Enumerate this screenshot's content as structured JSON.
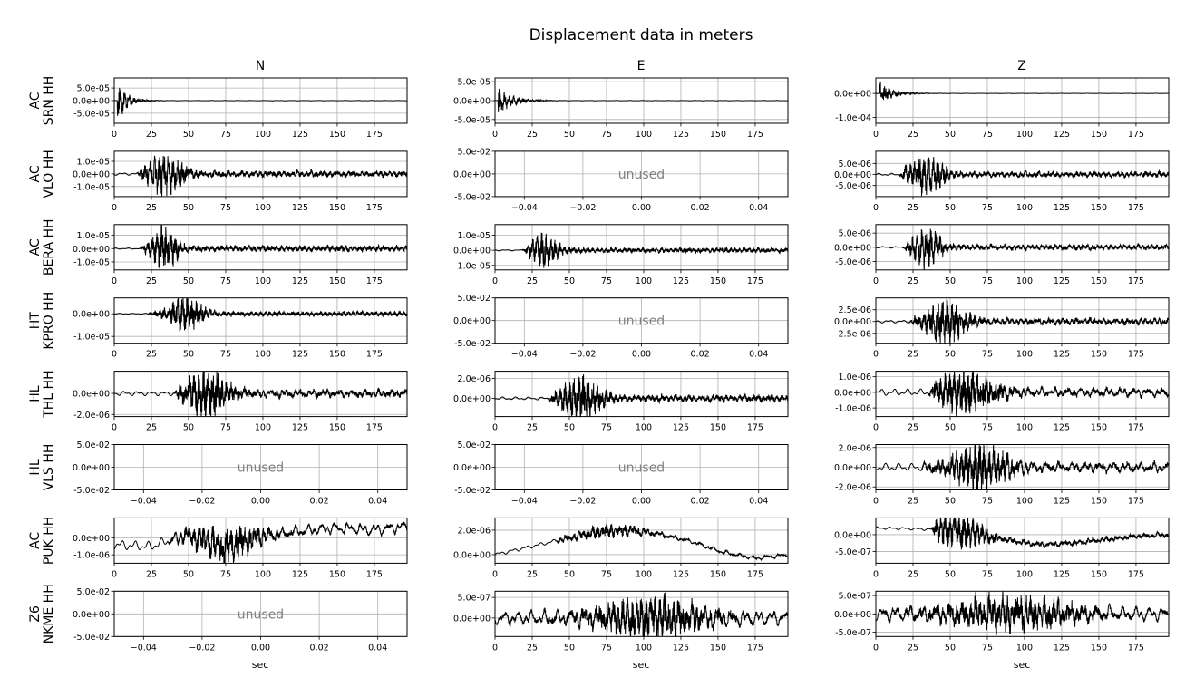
{
  "figure": {
    "title": "Displacement data in meters",
    "columns": [
      "N",
      "E",
      "Z"
    ],
    "xlabel": "sec",
    "unused_label": "unused"
  },
  "chart_data": [
    {
      "type": "line",
      "row": 0,
      "column": "N",
      "station": [
        "AC",
        "SRN HH"
      ],
      "used": true,
      "xlim": [
        0,
        197
      ],
      "xticks": [
        0,
        25,
        50,
        75,
        100,
        125,
        150,
        175
      ],
      "yticks": [
        {
          "value": 5e-05,
          "label": "5.0e-05"
        },
        {
          "value": 0,
          "label": "0.0e+00"
        },
        {
          "value": -5e-05,
          "label": "-5.0e-05"
        }
      ],
      "ylim": [
        -9e-05,
        9e-05
      ],
      "signal": {
        "onset": 2,
        "peak": 8e-05,
        "envelope": "impulsive decay",
        "decay": 6,
        "noise": 6e-07
      }
    },
    {
      "type": "line",
      "row": 0,
      "column": "E",
      "station": [
        "AC",
        "SRN HH"
      ],
      "used": true,
      "xlim": [
        0,
        197
      ],
      "xticks": [
        0,
        25,
        50,
        75,
        100,
        125,
        150,
        175
      ],
      "yticks": [
        {
          "value": 5e-05,
          "label": "5.0e-05"
        },
        {
          "value": 0,
          "label": "0.0e+00"
        },
        {
          "value": -5e-05,
          "label": "-5.0e-05"
        }
      ],
      "ylim": [
        -6e-05,
        6e-05
      ],
      "signal": {
        "onset": 2,
        "peak": 3.5e-05,
        "envelope": "impulsive decay",
        "decay": 9,
        "noise": 4e-07
      }
    },
    {
      "type": "line",
      "row": 0,
      "column": "Z",
      "station": [
        "AC",
        "SRN HH"
      ],
      "used": true,
      "xlim": [
        0,
        197
      ],
      "xticks": [
        0,
        25,
        50,
        75,
        100,
        125,
        150,
        175
      ],
      "yticks": [
        {
          "value": 0,
          "label": "0.0e+00"
        },
        {
          "value": -0.0001,
          "label": "-1.0e-04"
        }
      ],
      "ylim": [
        -0.000125,
        6.5e-05
      ],
      "signal": {
        "onset": 2,
        "peak": 5e-05,
        "envelope": "impulsive decay",
        "decay": 8,
        "noise": 5e-07
      }
    },
    {
      "type": "line",
      "row": 1,
      "column": "N",
      "station": [
        "AC",
        "VLO HH"
      ],
      "used": true,
      "xlim": [
        0,
        197
      ],
      "xticks": [
        0,
        25,
        50,
        75,
        100,
        125,
        150,
        175
      ],
      "yticks": [
        {
          "value": 1e-05,
          "label": "1.0e-05"
        },
        {
          "value": 0,
          "label": "0.0e+00"
        },
        {
          "value": -1e-05,
          "label": "-1.0e-05"
        }
      ],
      "ylim": [
        -1.8e-05,
        1.8e-05
      ],
      "signal": {
        "onset": 15,
        "peak": 1.3e-05,
        "envelope": "burst",
        "center": 34,
        "width": 13,
        "noise": 1e-06
      }
    },
    {
      "type": "line",
      "row": 1,
      "column": "E",
      "station": [
        "AC",
        "VLO HH"
      ],
      "used": false,
      "xlim": [
        -0.05,
        0.05
      ],
      "xticks": [
        {
          "value": -0.04,
          "label": "−0.04"
        },
        {
          "value": -0.02,
          "label": "−0.02"
        },
        {
          "value": 0,
          "label": "0.00"
        },
        {
          "value": 0.02,
          "label": "0.02"
        },
        {
          "value": 0.04,
          "label": "0.04"
        }
      ],
      "yticks": [
        {
          "value": 0.05,
          "label": "5.0e-02"
        },
        {
          "value": 0,
          "label": "0.0e+00"
        },
        {
          "value": -0.05,
          "label": "-5.0e-02"
        }
      ],
      "ylim": [
        -0.05,
        0.05
      ]
    },
    {
      "type": "line",
      "row": 1,
      "column": "Z",
      "station": [
        "AC",
        "VLO HH"
      ],
      "used": true,
      "xlim": [
        0,
        197
      ],
      "xticks": [
        0,
        25,
        50,
        75,
        100,
        125,
        150,
        175
      ],
      "yticks": [
        {
          "value": 5e-06,
          "label": "5.0e-06"
        },
        {
          "value": 0,
          "label": "0.0e+00"
        },
        {
          "value": -5e-06,
          "label": "-5.0e-06"
        }
      ],
      "ylim": [
        -1e-05,
        1.05e-05
      ],
      "signal": {
        "onset": 15,
        "peak": 7e-06,
        "envelope": "burst",
        "center": 34,
        "width": 13,
        "noise": 5e-07
      }
    },
    {
      "type": "line",
      "row": 2,
      "column": "N",
      "station": [
        "AC",
        "BERA HH"
      ],
      "used": true,
      "xlim": [
        0,
        197
      ],
      "xticks": [
        0,
        25,
        50,
        75,
        100,
        125,
        150,
        175
      ],
      "yticks": [
        {
          "value": 1e-05,
          "label": "1.0e-05"
        },
        {
          "value": 0,
          "label": "0.0e+00"
        },
        {
          "value": -1e-05,
          "label": "-1.0e-05"
        }
      ],
      "ylim": [
        -1.6e-05,
        1.8e-05
      ],
      "signal": {
        "onset": 17,
        "peak": 1.3e-05,
        "envelope": "burst",
        "center": 34,
        "width": 9,
        "noise": 5e-07
      }
    },
    {
      "type": "line",
      "row": 2,
      "column": "E",
      "station": [
        "AC",
        "BERA HH"
      ],
      "used": true,
      "xlim": [
        0,
        197
      ],
      "xticks": [
        0,
        25,
        50,
        75,
        100,
        125,
        150,
        175
      ],
      "yticks": [
        {
          "value": 1e-05,
          "label": "1.0e-05"
        },
        {
          "value": 0,
          "label": "0.0e+00"
        },
        {
          "value": -1e-05,
          "label": "-1.0e-05"
        }
      ],
      "ylim": [
        -1.3e-05,
        1.7e-05
      ],
      "signal": {
        "onset": 18,
        "peak": 9e-06,
        "envelope": "burst",
        "center": 33,
        "width": 10,
        "noise": 4e-07
      }
    },
    {
      "type": "line",
      "row": 2,
      "column": "Z",
      "station": [
        "AC",
        "BERA HH"
      ],
      "used": true,
      "xlim": [
        0,
        197
      ],
      "xticks": [
        0,
        25,
        50,
        75,
        100,
        125,
        150,
        175
      ],
      "yticks": [
        {
          "value": 5e-06,
          "label": "5.0e-06"
        },
        {
          "value": 0,
          "label": "0.0e+00"
        },
        {
          "value": -5e-06,
          "label": "-5.0e-06"
        }
      ],
      "ylim": [
        -8e-06,
        8e-06
      ],
      "signal": {
        "onset": 18,
        "peak": 5.5e-06,
        "envelope": "burst",
        "center": 34,
        "width": 10,
        "noise": 3e-07
      }
    },
    {
      "type": "line",
      "row": 3,
      "column": "N",
      "station": [
        "HT",
        "KPRO HH"
      ],
      "used": true,
      "xlim": [
        0,
        197
      ],
      "xticks": [
        0,
        25,
        50,
        75,
        100,
        125,
        150,
        175
      ],
      "yticks": [
        {
          "value": 0,
          "label": "0.0e+00"
        },
        {
          "value": -1e-05,
          "label": "-1.0e-05"
        }
      ],
      "ylim": [
        -1.3e-05,
        7e-06
      ],
      "signal": {
        "onset": 22,
        "peak": 6e-06,
        "envelope": "burst",
        "center": 48,
        "width": 12,
        "noise": 2e-07
      }
    },
    {
      "type": "line",
      "row": 3,
      "column": "E",
      "station": [
        "HT",
        "KPRO HH"
      ],
      "used": false,
      "xlim": [
        -0.05,
        0.05
      ],
      "xticks": [
        {
          "value": -0.04,
          "label": "−0.04"
        },
        {
          "value": -0.02,
          "label": "−0.02"
        },
        {
          "value": 0,
          "label": "0.00"
        },
        {
          "value": 0.02,
          "label": "0.02"
        },
        {
          "value": 0.04,
          "label": "0.04"
        }
      ],
      "yticks": [
        {
          "value": 0.05,
          "label": "5.0e-02"
        },
        {
          "value": 0,
          "label": "0.0e+00"
        },
        {
          "value": -0.05,
          "label": "-5.0e-02"
        }
      ],
      "ylim": [
        -0.05,
        0.05
      ]
    },
    {
      "type": "line",
      "row": 3,
      "column": "Z",
      "station": [
        "HT",
        "KPRO HH"
      ],
      "used": true,
      "xlim": [
        0,
        197
      ],
      "xticks": [
        0,
        25,
        50,
        75,
        100,
        125,
        150,
        175
      ],
      "yticks": [
        {
          "value": 2.5e-06,
          "label": "2.5e-06"
        },
        {
          "value": 0,
          "label": "0.0e+00"
        },
        {
          "value": -2.5e-06,
          "label": "-2.5e-06"
        }
      ],
      "ylim": [
        -4.6e-06,
        5e-06
      ],
      "signal": {
        "onset": 22,
        "peak": 3.8e-06,
        "envelope": "burst",
        "center": 47,
        "width": 14,
        "noise": 3e-07
      }
    },
    {
      "type": "line",
      "row": 4,
      "column": "N",
      "station": [
        "HL",
        "THL HH"
      ],
      "used": true,
      "xlim": [
        0,
        197
      ],
      "xticks": [
        0,
        25,
        50,
        75,
        100,
        125,
        150,
        175
      ],
      "yticks": [
        {
          "value": 0,
          "label": "0.0e+00"
        },
        {
          "value": -2e-06,
          "label": "-2.0e-06"
        }
      ],
      "ylim": [
        -2.2e-06,
        2.1e-06
      ],
      "signal": {
        "onset": 40,
        "peak": 1.8e-06,
        "envelope": "burst",
        "center": 62,
        "width": 16,
        "noise": 2.2e-07
      }
    },
    {
      "type": "line",
      "row": 4,
      "column": "E",
      "station": [
        "HL",
        "THL HH"
      ],
      "used": true,
      "xlim": [
        0,
        197
      ],
      "xticks": [
        0,
        25,
        50,
        75,
        100,
        125,
        150,
        175
      ],
      "yticks": [
        {
          "value": 2e-06,
          "label": "2.0e-06"
        },
        {
          "value": 0,
          "label": "0.0e+00"
        }
      ],
      "ylim": [
        -1.8e-06,
        2.7e-06
      ],
      "signal": {
        "onset": 35,
        "peak": 1.8e-06,
        "envelope": "burst",
        "center": 58,
        "width": 14,
        "noise": 1.5e-07
      }
    },
    {
      "type": "line",
      "row": 4,
      "column": "Z",
      "station": [
        "HL",
        "THL HH"
      ],
      "used": true,
      "xlim": [
        0,
        197
      ],
      "xticks": [
        0,
        25,
        50,
        75,
        100,
        125,
        150,
        175
      ],
      "yticks": [
        {
          "value": 1e-06,
          "label": "1.0e-06"
        },
        {
          "value": 0,
          "label": "0.0e+00"
        },
        {
          "value": -1e-06,
          "label": "-1.0e-06"
        }
      ],
      "ylim": [
        -1.55e-06,
        1.35e-06
      ],
      "signal": {
        "onset": 35,
        "peak": 1.1e-06,
        "envelope": "burst",
        "center": 60,
        "width": 22,
        "noise": 2.2e-07
      }
    },
    {
      "type": "line",
      "row": 5,
      "column": "N",
      "station": [
        "HL",
        "VLS HH"
      ],
      "used": false,
      "xlim": [
        -0.05,
        0.05
      ],
      "xticks": [
        {
          "value": -0.04,
          "label": "−0.04"
        },
        {
          "value": -0.02,
          "label": "−0.02"
        },
        {
          "value": 0,
          "label": "0.00"
        },
        {
          "value": 0.02,
          "label": "0.02"
        },
        {
          "value": 0.04,
          "label": "0.04"
        }
      ],
      "yticks": [
        {
          "value": 0.05,
          "label": "5.0e-02"
        },
        {
          "value": 0,
          "label": "0.0e+00"
        },
        {
          "value": -0.05,
          "label": "-5.0e-02"
        }
      ],
      "ylim": [
        -0.05,
        0.05
      ]
    },
    {
      "type": "line",
      "row": 5,
      "column": "E",
      "station": [
        "HL",
        "VLS HH"
      ],
      "used": false,
      "xlim": [
        -0.05,
        0.05
      ],
      "xticks": [
        {
          "value": -0.04,
          "label": "−0.04"
        },
        {
          "value": -0.02,
          "label": "−0.02"
        },
        {
          "value": 0,
          "label": "0.00"
        },
        {
          "value": 0.02,
          "label": "0.02"
        },
        {
          "value": 0.04,
          "label": "0.04"
        }
      ],
      "yticks": [
        {
          "value": 0.05,
          "label": "5.0e-02"
        },
        {
          "value": 0,
          "label": "0.0e+00"
        },
        {
          "value": -0.05,
          "label": "-5.0e-02"
        }
      ],
      "ylim": [
        -0.05,
        0.05
      ]
    },
    {
      "type": "line",
      "row": 5,
      "column": "Z",
      "station": [
        "HL",
        "VLS HH"
      ],
      "used": true,
      "xlim": [
        0,
        197
      ],
      "xticks": [
        0,
        25,
        50,
        75,
        100,
        125,
        150,
        175
      ],
      "yticks": [
        {
          "value": 2e-06,
          "label": "2.0e-06"
        },
        {
          "value": 0,
          "label": "0.0e+00"
        },
        {
          "value": -2e-06,
          "label": "-2.0e-06"
        }
      ],
      "ylim": [
        -2.3e-06,
        2.3e-06
      ],
      "signal": {
        "onset": 30,
        "peak": 2e-06,
        "envelope": "burst",
        "center": 70,
        "width": 20,
        "noise": 4e-07
      }
    },
    {
      "type": "line",
      "row": 6,
      "column": "N",
      "station": [
        "AC",
        "PUK HH"
      ],
      "used": true,
      "xlim": [
        0,
        197
      ],
      "xticks": [
        0,
        25,
        50,
        75,
        100,
        125,
        150,
        175
      ],
      "yticks": [
        {
          "value": 0,
          "label": "0.0e+00"
        },
        {
          "value": -1e-06,
          "label": "-1.0e-06"
        }
      ],
      "ylim": [
        -1.5e-06,
        1.2e-06
      ],
      "signal": {
        "onset": 35,
        "peak": 8e-07,
        "envelope": "burst",
        "center": 75,
        "width": 25,
        "noise": 3e-07,
        "trend": [
          -4e-07,
          -5e-07,
          2e-07,
          -6e-07,
          1e-07,
          4e-07,
          6e-07,
          5e-07,
          7e-07
        ]
      }
    },
    {
      "type": "line",
      "row": 6,
      "column": "E",
      "station": [
        "AC",
        "PUK HH"
      ],
      "used": true,
      "xlim": [
        0,
        197
      ],
      "xticks": [
        0,
        25,
        50,
        75,
        100,
        125,
        150,
        175
      ],
      "yticks": [
        {
          "value": 2e-06,
          "label": "2.0e-06"
        },
        {
          "value": 0,
          "label": "0.0e+00"
        }
      ],
      "ylim": [
        -7e-07,
        3e-06
      ],
      "signal": {
        "onset": 40,
        "peak": 4e-07,
        "envelope": "burst",
        "center": 75,
        "width": 30,
        "noise": 1.5e-07,
        "trend": [
          0,
          6e-07,
          1.2e-06,
          1.8e-06,
          2e-06,
          1.7e-06,
          1.1e-06,
          2e-07,
          -3e-07,
          0
        ]
      }
    },
    {
      "type": "line",
      "row": 6,
      "column": "Z",
      "station": [
        "AC",
        "PUK HH"
      ],
      "used": true,
      "xlim": [
        0,
        197
      ],
      "xticks": [
        0,
        25,
        50,
        75,
        100,
        125,
        150,
        175
      ],
      "yticks": [
        {
          "value": 0,
          "label": "0.0e+00"
        },
        {
          "value": -5e-07,
          "label": "-5.0e-07"
        }
      ],
      "ylim": [
        -8.5e-07,
        5e-07
      ],
      "signal": {
        "onset": 37,
        "peak": 4e-07,
        "envelope": "burst",
        "center": 55,
        "width": 20,
        "noise": 4e-08,
        "trend": [
          2e-07,
          1.8e-07,
          1.5e-07,
          5e-08,
          -1.5e-07,
          -3e-07,
          -2.5e-07,
          -1.5e-07,
          -5e-08,
          0
        ]
      }
    },
    {
      "type": "line",
      "row": 7,
      "column": "N",
      "station": [
        "Z6",
        "NKME HH"
      ],
      "used": false,
      "xlim": [
        -0.05,
        0.05
      ],
      "xticks": [
        {
          "value": -0.04,
          "label": "−0.04"
        },
        {
          "value": -0.02,
          "label": "−0.02"
        },
        {
          "value": 0,
          "label": "0.00"
        },
        {
          "value": 0.02,
          "label": "0.02"
        },
        {
          "value": 0.04,
          "label": "0.04"
        }
      ],
      "yticks": [
        {
          "value": 0.05,
          "label": "5.0e-02"
        },
        {
          "value": 0,
          "label": "0.0e+00"
        },
        {
          "value": -0.05,
          "label": "-5.0e-02"
        }
      ],
      "ylim": [
        -0.05,
        0.05
      ]
    },
    {
      "type": "line",
      "row": 7,
      "column": "E",
      "station": [
        "Z6",
        "NKME HH"
      ],
      "used": true,
      "xlim": [
        0,
        197
      ],
      "xticks": [
        0,
        25,
        50,
        75,
        100,
        125,
        150,
        175
      ],
      "yticks": [
        {
          "value": 5e-07,
          "label": "5.0e-07"
        },
        {
          "value": 0,
          "label": "0.0e+00"
        }
      ],
      "ylim": [
        -4.5e-07,
        6.5e-07
      ],
      "signal": {
        "onset": 0,
        "peak": 3.8e-07,
        "envelope": "burst",
        "center": 105,
        "width": 40,
        "noise": 1.6e-07
      }
    },
    {
      "type": "line",
      "row": 7,
      "column": "Z",
      "station": [
        "Z6",
        "NKME HH"
      ],
      "used": true,
      "xlim": [
        0,
        197
      ],
      "xticks": [
        0,
        25,
        50,
        75,
        100,
        125,
        150,
        175
      ],
      "yticks": [
        {
          "value": 5e-07,
          "label": "5.0e-07"
        },
        {
          "value": 0,
          "label": "0.0e+00"
        },
        {
          "value": -5e-07,
          "label": "-5.0e-07"
        }
      ],
      "ylim": [
        -6.2e-07,
        6.2e-07
      ],
      "signal": {
        "onset": 0,
        "peak": 3.8e-07,
        "envelope": "burst",
        "center": 90,
        "width": 45,
        "noise": 1.8e-07
      }
    }
  ]
}
